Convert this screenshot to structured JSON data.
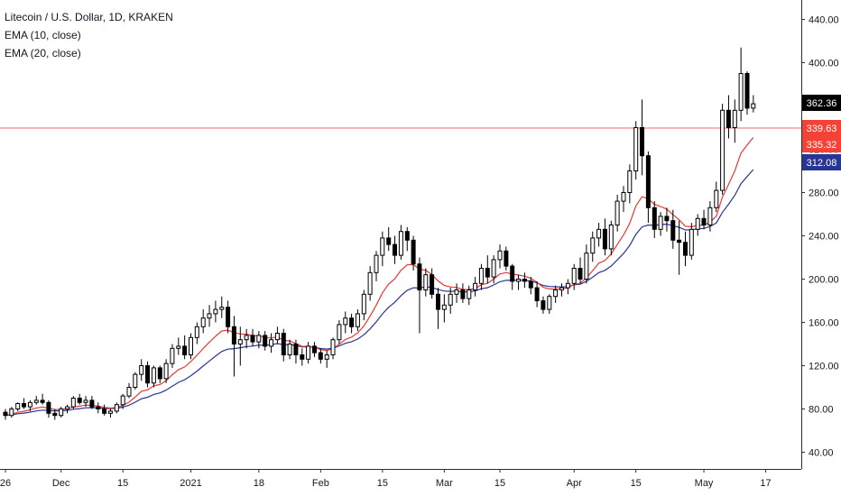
{
  "legend": {
    "title": "Litecoin / U.S. Dollar, 1D, KRAKEN",
    "ema1": "EMA (10, close)",
    "ema2": "EMA (20, close)"
  },
  "chart_data": {
    "type": "candlestick",
    "symbol": "Litecoin / U.S. Dollar",
    "interval": "1D",
    "exchange": "KRAKEN",
    "y_axis_side": "right",
    "ylim": [
      20,
      450
    ],
    "y_ticks": [
      40,
      80,
      120,
      160,
      200,
      240,
      280,
      320,
      360,
      400,
      440
    ],
    "y_tick_labels": [
      "40.00",
      "80.00",
      "120.00",
      "160.00",
      "200.00",
      "240.00",
      "280.00",
      "320.00",
      "360.00",
      "400.00",
      "440.00"
    ],
    "x_ticks": [
      {
        "index": 0,
        "label": "26"
      },
      {
        "index": 9,
        "label": "Dec"
      },
      {
        "index": 19,
        "label": "15"
      },
      {
        "index": 30,
        "label": "2021"
      },
      {
        "index": 41,
        "label": "18"
      },
      {
        "index": 51,
        "label": "Feb"
      },
      {
        "index": 61,
        "label": "15"
      },
      {
        "index": 71,
        "label": "Mar"
      },
      {
        "index": 80,
        "label": "15"
      },
      {
        "index": 92,
        "label": "Apr"
      },
      {
        "index": 102,
        "label": "15"
      },
      {
        "index": 113,
        "label": "May"
      },
      {
        "index": 123,
        "label": "17"
      }
    ],
    "candles": [
      [
        77,
        80,
        70,
        74
      ],
      [
        74,
        82,
        72,
        80
      ],
      [
        80,
        86,
        78,
        85
      ],
      [
        85,
        90,
        80,
        82
      ],
      [
        82,
        88,
        78,
        86
      ],
      [
        86,
        92,
        84,
        88
      ],
      [
        88,
        94,
        84,
        86
      ],
      [
        86,
        88,
        72,
        76
      ],
      [
        76,
        80,
        70,
        74
      ],
      [
        74,
        82,
        72,
        80
      ],
      [
        80,
        84,
        76,
        82
      ],
      [
        82,
        92,
        80,
        90
      ],
      [
        90,
        94,
        84,
        86
      ],
      [
        86,
        92,
        82,
        88
      ],
      [
        88,
        92,
        80,
        82
      ],
      [
        82,
        86,
        76,
        80
      ],
      [
        80,
        84,
        74,
        76
      ],
      [
        76,
        80,
        72,
        78
      ],
      [
        78,
        86,
        76,
        84
      ],
      [
        84,
        94,
        80,
        92
      ],
      [
        92,
        104,
        90,
        100
      ],
      [
        100,
        114,
        98,
        112
      ],
      [
        112,
        126,
        106,
        120
      ],
      [
        120,
        124,
        100,
        104
      ],
      [
        104,
        120,
        100,
        118
      ],
      [
        118,
        120,
        104,
        108
      ],
      [
        108,
        126,
        104,
        122
      ],
      [
        122,
        140,
        118,
        136
      ],
      [
        136,
        146,
        130,
        138
      ],
      [
        138,
        148,
        126,
        130
      ],
      [
        130,
        150,
        126,
        146
      ],
      [
        146,
        160,
        140,
        156
      ],
      [
        156,
        172,
        150,
        164
      ],
      [
        164,
        176,
        156,
        168
      ],
      [
        168,
        180,
        160,
        172
      ],
      [
        172,
        184,
        164,
        174
      ],
      [
        174,
        180,
        150,
        156
      ],
      [
        156,
        166,
        110,
        140
      ],
      [
        140,
        156,
        120,
        144
      ],
      [
        144,
        154,
        136,
        148
      ],
      [
        148,
        154,
        138,
        142
      ],
      [
        142,
        152,
        136,
        148
      ],
      [
        148,
        152,
        134,
        138
      ],
      [
        138,
        150,
        132,
        144
      ],
      [
        144,
        156,
        140,
        150
      ],
      [
        150,
        154,
        124,
        130
      ],
      [
        130,
        144,
        126,
        140
      ],
      [
        140,
        144,
        122,
        130
      ],
      [
        130,
        136,
        120,
        126
      ],
      [
        126,
        142,
        122,
        138
      ],
      [
        138,
        142,
        128,
        132
      ],
      [
        132,
        136,
        122,
        126
      ],
      [
        126,
        134,
        118,
        130
      ],
      [
        130,
        146,
        126,
        144
      ],
      [
        144,
        162,
        140,
        158
      ],
      [
        158,
        170,
        150,
        164
      ],
      [
        164,
        168,
        150,
        156
      ],
      [
        156,
        172,
        152,
        168
      ],
      [
        168,
        190,
        162,
        186
      ],
      [
        186,
        212,
        180,
        206
      ],
      [
        206,
        226,
        198,
        222
      ],
      [
        222,
        244,
        212,
        238
      ],
      [
        238,
        248,
        226,
        232
      ],
      [
        232,
        240,
        214,
        222
      ],
      [
        222,
        250,
        218,
        244
      ],
      [
        244,
        248,
        226,
        236
      ],
      [
        236,
        240,
        208,
        214
      ],
      [
        214,
        220,
        150,
        190
      ],
      [
        190,
        210,
        184,
        204
      ],
      [
        204,
        210,
        182,
        186
      ],
      [
        186,
        192,
        154,
        172
      ],
      [
        172,
        186,
        160,
        176
      ],
      [
        176,
        192,
        168,
        186
      ],
      [
        186,
        196,
        178,
        190
      ],
      [
        190,
        196,
        178,
        182
      ],
      [
        182,
        194,
        176,
        190
      ],
      [
        190,
        202,
        184,
        196
      ],
      [
        196,
        214,
        190,
        210
      ],
      [
        210,
        222,
        196,
        202
      ],
      [
        202,
        222,
        196,
        218
      ],
      [
        218,
        232,
        210,
        226
      ],
      [
        226,
        230,
        208,
        212
      ],
      [
        212,
        214,
        190,
        198
      ],
      [
        198,
        204,
        190,
        200
      ],
      [
        200,
        206,
        192,
        198
      ],
      [
        198,
        202,
        186,
        192
      ],
      [
        192,
        198,
        174,
        180
      ],
      [
        180,
        184,
        168,
        172
      ],
      [
        172,
        186,
        168,
        184
      ],
      [
        184,
        194,
        178,
        190
      ],
      [
        190,
        196,
        184,
        192
      ],
      [
        192,
        200,
        186,
        196
      ],
      [
        196,
        214,
        190,
        210
      ],
      [
        210,
        220,
        196,
        200
      ],
      [
        200,
        232,
        196,
        224
      ],
      [
        224,
        244,
        216,
        238
      ],
      [
        238,
        252,
        230,
        246
      ],
      [
        246,
        256,
        222,
        228
      ],
      [
        228,
        254,
        222,
        250
      ],
      [
        250,
        278,
        244,
        272
      ],
      [
        272,
        286,
        262,
        280
      ],
      [
        280,
        306,
        270,
        300
      ],
      [
        300,
        346,
        292,
        340
      ],
      [
        340,
        366,
        296,
        314
      ],
      [
        314,
        318,
        252,
        266
      ],
      [
        266,
        272,
        238,
        246
      ],
      [
        246,
        262,
        240,
        258
      ],
      [
        258,
        266,
        244,
        254
      ],
      [
        254,
        264,
        228,
        236
      ],
      [
        236,
        254,
        204,
        234
      ],
      [
        234,
        244,
        212,
        222
      ],
      [
        222,
        252,
        218,
        246
      ],
      [
        246,
        260,
        240,
        256
      ],
      [
        256,
        264,
        246,
        250
      ],
      [
        250,
        272,
        244,
        266
      ],
      [
        266,
        290,
        262,
        282
      ],
      [
        282,
        362,
        278,
        356
      ],
      [
        356,
        370,
        330,
        340
      ],
      [
        340,
        366,
        326,
        356
      ],
      [
        356,
        414,
        346,
        390
      ],
      [
        390,
        392,
        352,
        358
      ],
      [
        358,
        370,
        354,
        362
      ]
    ],
    "series": [
      {
        "name": "EMA (10, close)",
        "color": "#e53935",
        "last_value": 335.32
      },
      {
        "name": "EMA (20, close)",
        "color": "#283593",
        "last_value": 312.08
      }
    ],
    "horizontal_line": {
      "price": 339.63,
      "color": "#f06a6a",
      "label": "339.63"
    },
    "price_labels": [
      {
        "value": 362.36,
        "text": "362.36",
        "bg": "#000000",
        "fg": "#ffffff"
      },
      {
        "value": 339.63,
        "text": "339.63",
        "bg": "#f44336",
        "fg": "#ffffff"
      },
      {
        "value": 335.32,
        "text": "335.32",
        "bg": "#f44336",
        "fg": "#ffffff"
      },
      {
        "value": 312.08,
        "text": "312.08",
        "bg": "#283593",
        "fg": "#ffffff"
      }
    ],
    "grid": false,
    "legend_position": "top-left"
  }
}
